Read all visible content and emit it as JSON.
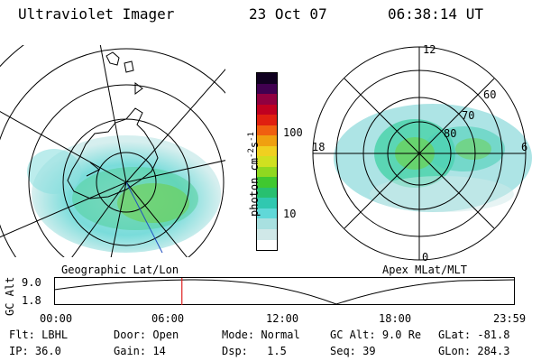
{
  "header": {
    "instrument": "Ultraviolet Imager",
    "date": "23 Oct 07",
    "time": "06:38:14 UT"
  },
  "left_map": {
    "label": "Geographic Lat/Lon"
  },
  "right_map": {
    "label": "Apex MLat/MLT",
    "mlt_labels": {
      "top": "12",
      "left": "18",
      "right": "6",
      "bottom": "0"
    },
    "lat_labels": [
      "60",
      "70",
      "80"
    ]
  },
  "colorbar": {
    "label": "photon cm",
    "exp1": "-2",
    "mid": "s",
    "exp2": "-1",
    "ticks": [
      "100",
      "10"
    ],
    "colors": [
      "#ffffff",
      "#d0e8e8",
      "#a8e0e0",
      "#60d8d8",
      "#30c8b0",
      "#28c070",
      "#40c830",
      "#90d820",
      "#d0e020",
      "#f0d020",
      "#f0a010",
      "#f06010",
      "#e02010",
      "#c00020",
      "#900040",
      "#400050",
      "#100020"
    ]
  },
  "altitude_plot": {
    "ylabel": "GC Alt",
    "yticks": [
      "9.0",
      "1.8"
    ],
    "xticks": [
      "00:00",
      "06:00",
      "12:00",
      "18:00",
      "23:59"
    ],
    "marker_time_fraction": 0.2765
  },
  "footer": {
    "row1": [
      {
        "label": "Flt:",
        "value": "LBHL"
      },
      {
        "label": "Door:",
        "value": "Open"
      },
      {
        "label": "Mode:",
        "value": "Normal"
      },
      {
        "label": "GC Alt:",
        "value": "9.0 Re"
      },
      {
        "label": "GLat:",
        "value": "-81.8"
      }
    ],
    "row2": [
      {
        "label": "IP:",
        "value": "36.0"
      },
      {
        "label": "Gain:",
        "value": "14"
      },
      {
        "label": "Dsp:",
        "value": "1.5"
      },
      {
        "label": "Seq:",
        "value": "39"
      },
      {
        "label": "GLon:",
        "value": "284.3"
      }
    ]
  }
}
